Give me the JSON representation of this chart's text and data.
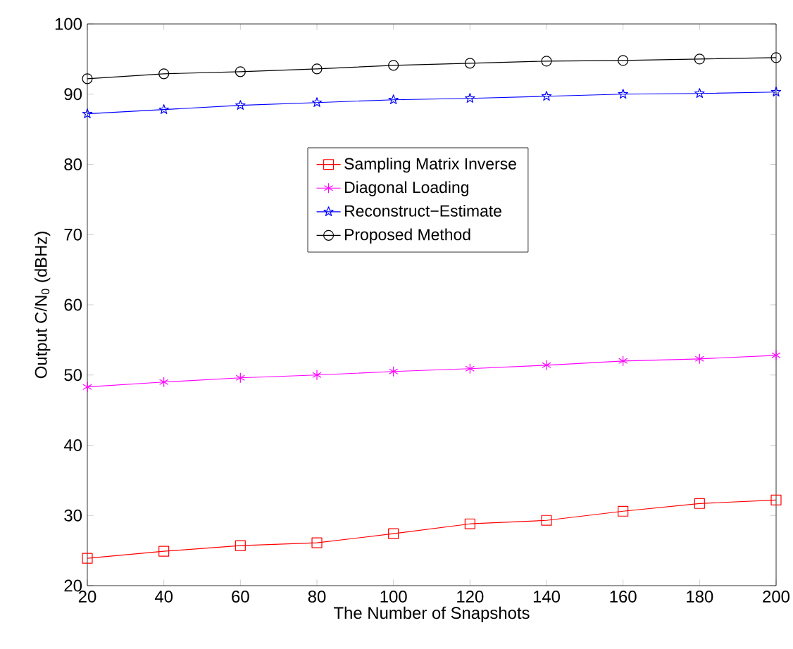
{
  "chart_data": {
    "type": "line",
    "xlabel": "The Number of Snapshots",
    "ylabel": "Output C/N$_{0}$ (dBHz)",
    "x": [
      20,
      40,
      60,
      80,
      100,
      120,
      140,
      160,
      180,
      200
    ],
    "xlim": [
      20,
      200
    ],
    "xticks": [
      20,
      40,
      60,
      80,
      100,
      120,
      140,
      160,
      180,
      200
    ],
    "ylim": [
      20,
      100
    ],
    "yticks": [
      20,
      30,
      40,
      50,
      60,
      70,
      80,
      90,
      100
    ],
    "grid": false,
    "legend": "top",
    "line_style": "solid",
    "series": [
      {
        "name": "Sampling Matrix Inverse",
        "color": "#ff0000",
        "marker": "square",
        "values": [
          23.9,
          24.9,
          25.7,
          26.1,
          27.4,
          28.8,
          29.3,
          30.6,
          31.7,
          32.2
        ]
      },
      {
        "name": "Diagonal Loading",
        "color": "#ff00ff",
        "marker": "cross",
        "values": [
          48.3,
          49.0,
          49.6,
          50.0,
          50.5,
          50.9,
          51.4,
          52.0,
          52.3,
          52.8
        ]
      },
      {
        "name": "Reconstruct−Estimate",
        "color": "#0000ff",
        "marker": "star",
        "values": [
          87.2,
          87.8,
          88.4,
          88.8,
          89.2,
          89.4,
          89.7,
          90.0,
          90.1,
          90.3
        ]
      },
      {
        "name": "Proposed Method",
        "color": "#000000",
        "marker": "circle",
        "values": [
          92.2,
          92.9,
          93.2,
          93.6,
          94.1,
          94.4,
          94.7,
          94.8,
          95.0,
          95.2
        ]
      }
    ]
  }
}
